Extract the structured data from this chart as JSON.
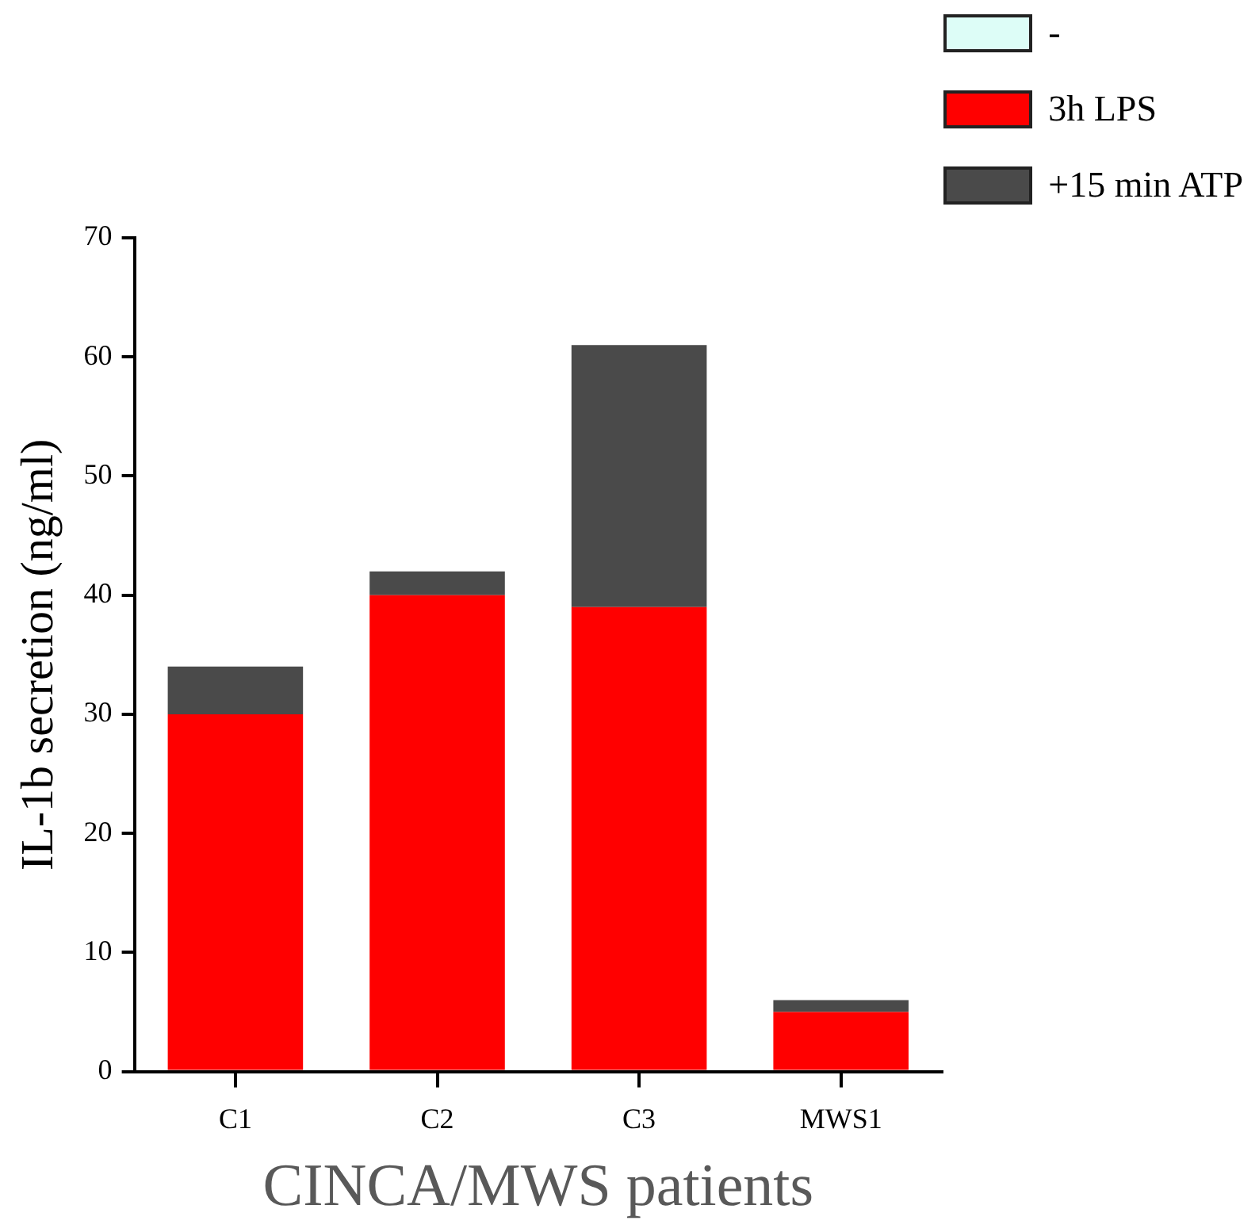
{
  "chart_data": {
    "type": "bar",
    "stacked": true,
    "xlabel": "CINCA/MWS patients",
    "ylabel": "IL-1b secretion (ng/ml)",
    "categories": [
      "C1",
      "C2",
      "C3",
      "MWS1"
    ],
    "series": [
      {
        "name": "-",
        "color": "#ddfdf7",
        "values": [
          0,
          0,
          0,
          0
        ]
      },
      {
        "name": "3h LPS",
        "color": "#ff0000",
        "values": [
          30,
          40,
          39,
          5
        ]
      },
      {
        "name": "+15 min ATP",
        "color": "#4a4a4a",
        "values": [
          4,
          2,
          22,
          1
        ]
      }
    ],
    "ylim": [
      0,
      70
    ],
    "yticks": [
      0,
      10,
      20,
      30,
      40,
      50,
      60,
      70
    ],
    "legend": "top right"
  }
}
